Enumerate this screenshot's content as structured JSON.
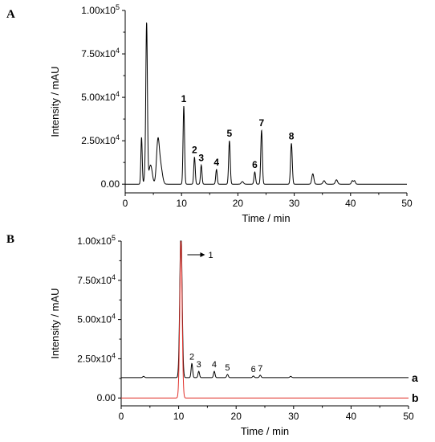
{
  "chart_data": [
    {
      "panel": "A",
      "type": "line",
      "xlabel": "Time / min",
      "ylabel": "Intensity / mAU",
      "xlim": [
        0,
        50
      ],
      "ylim": [
        -5000,
        100000
      ],
      "x_ticks": [
        0,
        10,
        20,
        30,
        40,
        50
      ],
      "y_ticks": [
        0,
        25000,
        50000,
        75000,
        100000
      ],
      "y_tick_labels": [
        {
          "base": "0.00",
          "exp": ""
        },
        {
          "base": "2.50x10",
          "exp": "4"
        },
        {
          "base": "5.00x10",
          "exp": "4"
        },
        {
          "base": "7.50x10",
          "exp": "4"
        },
        {
          "base": "1.00x10",
          "exp": "5"
        }
      ],
      "series": [
        {
          "color": "#000000",
          "baseline": 0,
          "peaks": [
            {
              "x": 2.9,
              "y": 27000,
              "w": 0.12
            },
            {
              "x": 3.5,
              "y": 5000,
              "w": 0.15
            },
            {
              "x": 3.8,
              "y": 92000,
              "w": 0.14
            },
            {
              "x": 4.5,
              "y": 11000,
              "w": 0.3
            },
            {
              "x": 5.8,
              "y": 24000,
              "w": 0.25
            },
            {
              "x": 6.3,
              "y": 10000,
              "w": 0.3
            },
            {
              "x": 10.4,
              "y": 45000,
              "w": 0.13
            },
            {
              "x": 12.3,
              "y": 15500,
              "w": 0.13
            },
            {
              "x": 13.5,
              "y": 11000,
              "w": 0.13
            },
            {
              "x": 16.2,
              "y": 8500,
              "w": 0.13
            },
            {
              "x": 18.5,
              "y": 25000,
              "w": 0.14
            },
            {
              "x": 20.8,
              "y": 1500,
              "w": 0.2
            },
            {
              "x": 23.0,
              "y": 7000,
              "w": 0.14
            },
            {
              "x": 24.2,
              "y": 31000,
              "w": 0.14
            },
            {
              "x": 29.5,
              "y": 23500,
              "w": 0.15
            },
            {
              "x": 33.3,
              "y": 6000,
              "w": 0.18
            },
            {
              "x": 35.3,
              "y": 2000,
              "w": 0.2
            },
            {
              "x": 37.5,
              "y": 2500,
              "w": 0.2
            },
            {
              "x": 40.3,
              "y": 2000,
              "w": 0.15
            },
            {
              "x": 40.7,
              "y": 2000,
              "w": 0.15
            }
          ]
        }
      ],
      "annotations": [
        {
          "text": "1",
          "x": 10.4,
          "y": 45000
        },
        {
          "text": "2",
          "x": 12.3,
          "y": 15500
        },
        {
          "text": "3",
          "x": 13.5,
          "y": 11000
        },
        {
          "text": "4",
          "x": 16.2,
          "y": 8500
        },
        {
          "text": "5",
          "x": 18.5,
          "y": 25000
        },
        {
          "text": "6",
          "x": 23.0,
          "y": 7000
        },
        {
          "text": "7",
          "x": 24.2,
          "y": 31000
        },
        {
          "text": "8",
          "x": 29.5,
          "y": 23500
        }
      ]
    },
    {
      "panel": "B",
      "type": "line",
      "xlabel": "Time / min",
      "ylabel": "Intensity / mAU",
      "xlim": [
        0,
        50
      ],
      "ylim": [
        -5000,
        100000
      ],
      "x_ticks": [
        0,
        10,
        20,
        30,
        40,
        50
      ],
      "y_ticks": [
        0,
        25000,
        50000,
        75000,
        100000
      ],
      "y_tick_labels": [
        {
          "base": "0.00",
          "exp": ""
        },
        {
          "base": "2.50x10",
          "exp": "4"
        },
        {
          "base": "5.00x10",
          "exp": "4"
        },
        {
          "base": "7.50x10",
          "exp": "4"
        },
        {
          "base": "1.00x10",
          "exp": "5"
        }
      ],
      "series": [
        {
          "name": "a",
          "color": "#000000",
          "baseline": 13000,
          "peaks": [
            {
              "x": 3.9,
              "y": 800,
              "w": 0.15
            },
            {
              "x": 10.4,
              "y": 95000,
              "w": 0.2
            },
            {
              "x": 12.3,
              "y": 9000,
              "w": 0.13
            },
            {
              "x": 13.5,
              "y": 4000,
              "w": 0.13
            },
            {
              "x": 16.2,
              "y": 4000,
              "w": 0.13
            },
            {
              "x": 18.5,
              "y": 2000,
              "w": 0.14
            },
            {
              "x": 23.0,
              "y": 1000,
              "w": 0.14
            },
            {
              "x": 24.2,
              "y": 1500,
              "w": 0.14
            },
            {
              "x": 29.5,
              "y": 800,
              "w": 0.15
            }
          ]
        },
        {
          "name": "b",
          "color": "#e0302a",
          "baseline": 0,
          "peaks": [
            {
              "x": 10.4,
              "y": 100000,
              "w": 0.2
            }
          ]
        }
      ],
      "annotations": [
        {
          "text": "1",
          "x": 10.4,
          "y": 100000,
          "arrow": true
        },
        {
          "text": "2",
          "x": 12.3,
          "y": 22000
        },
        {
          "text": "3",
          "x": 13.5,
          "y": 17000
        },
        {
          "text": "4",
          "x": 16.2,
          "y": 17000
        },
        {
          "text": "5",
          "x": 18.5,
          "y": 15000
        },
        {
          "text": "6",
          "x": 23.0,
          "y": 14000
        },
        {
          "text": "7",
          "x": 24.2,
          "y": 14500
        }
      ]
    }
  ]
}
